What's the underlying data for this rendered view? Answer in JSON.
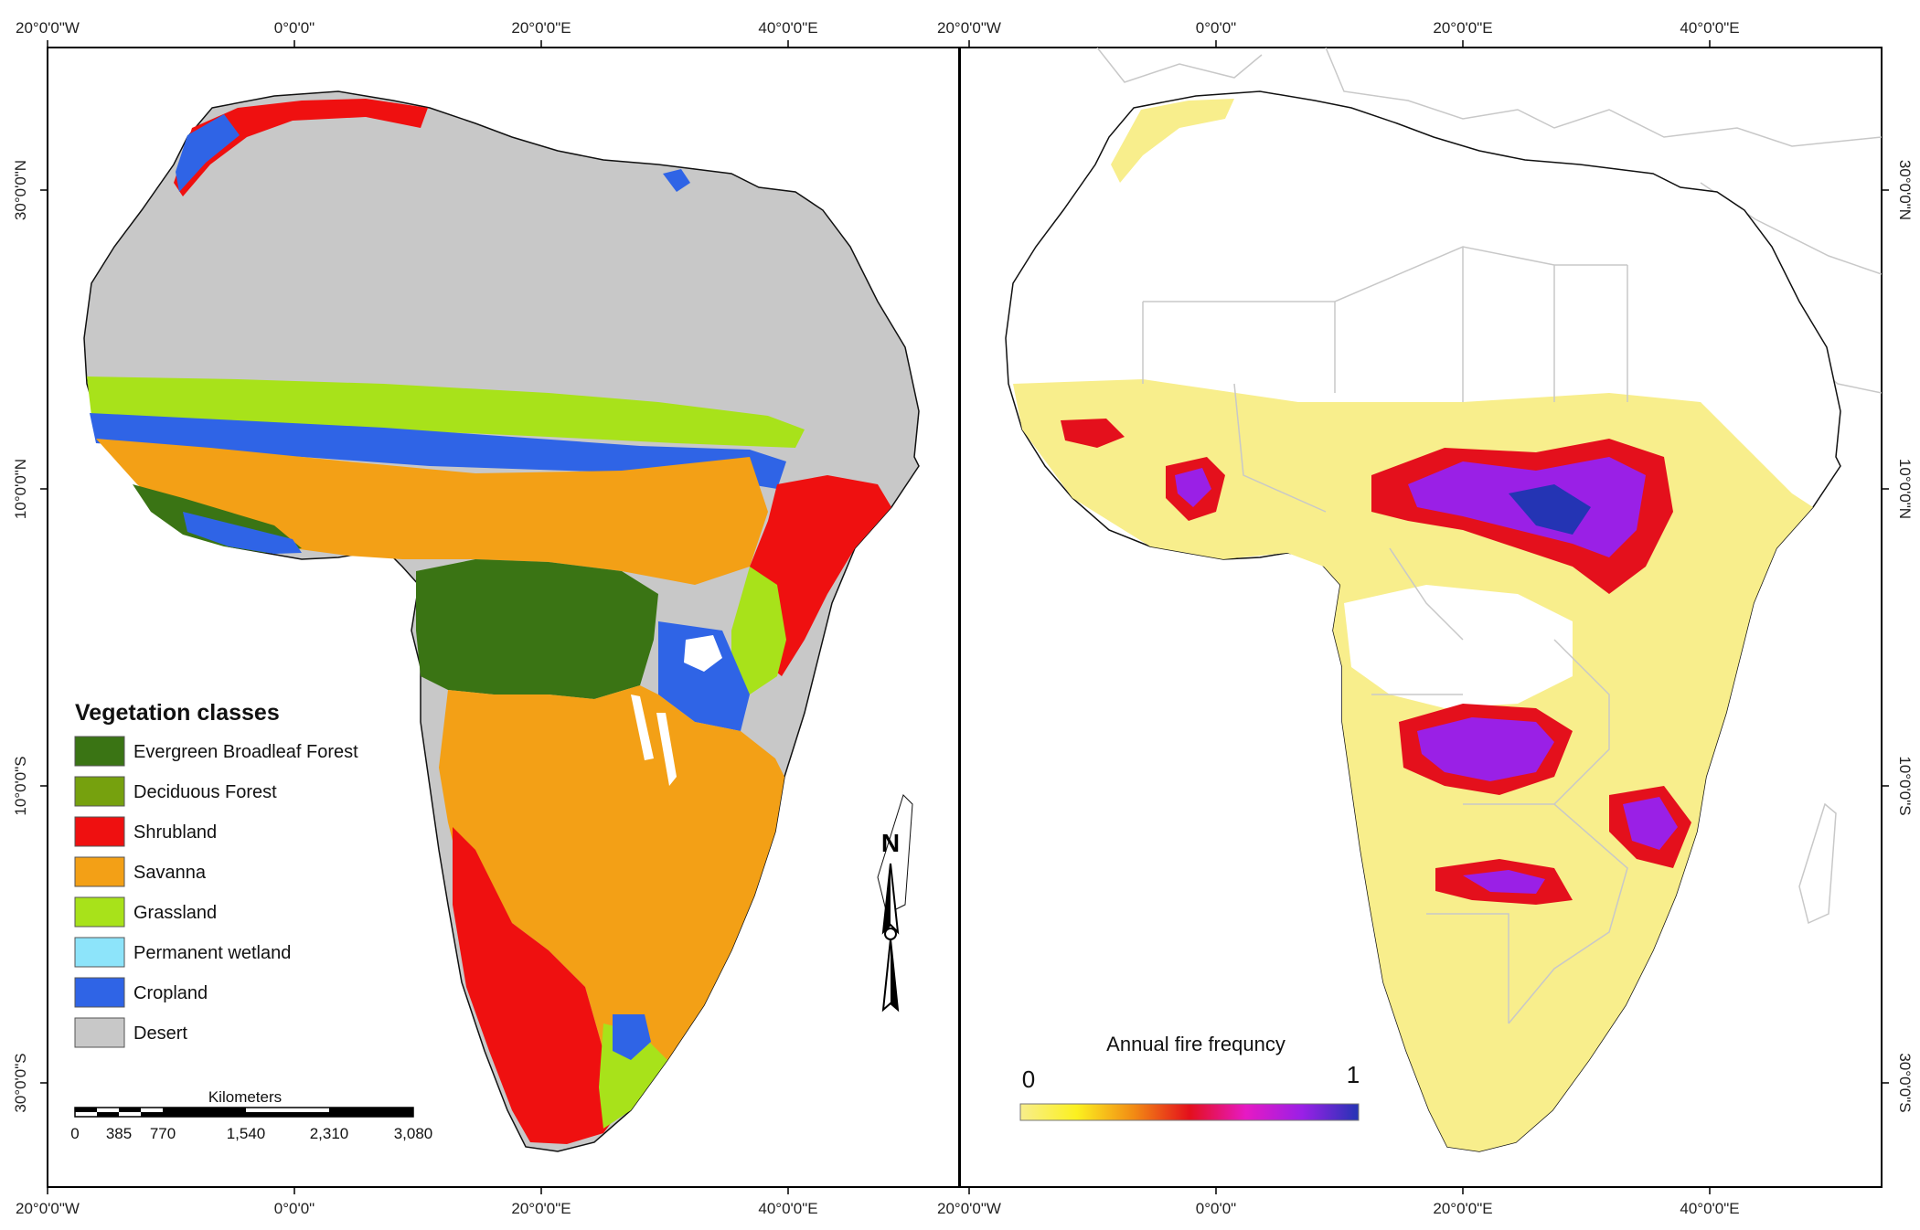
{
  "left_map": {
    "top_ticks": [
      "20°0'0\"W",
      "0°0'0\"",
      "20°0'0\"E",
      "40°0'0\"E"
    ],
    "bottom_ticks": [
      "20°0'0\"W",
      "0°0'0\"",
      "20°0'0\"E",
      "40°0'0\"E"
    ],
    "left_ticks": [
      "30°0'0\"N",
      "10°0'0\"N",
      "10°0'0\"S",
      "30°0'0\"S"
    ],
    "legend": {
      "title": "Vegetation classes",
      "items": [
        {
          "label": "Evergreen Broadleaf Forest",
          "color": "#3a7414"
        },
        {
          "label": "Deciduous Forest",
          "color": "#76a10e"
        },
        {
          "label": "Shrubland",
          "color": "#ef1010"
        },
        {
          "label": "Savanna",
          "color": "#f3a016"
        },
        {
          "label": "Grassland",
          "color": "#a8e21a"
        },
        {
          "label": "Permanent wetland",
          "color": "#8de4fa"
        },
        {
          "label": "Cropland",
          "color": "#2f64e6"
        },
        {
          "label": "Desert",
          "color": "#c8c8c8"
        }
      ]
    },
    "scale_bar": {
      "title": "Kilometers",
      "ticks": [
        "0",
        "385",
        "770",
        "1,540",
        "2,310",
        "3,080"
      ]
    },
    "north_label": "N"
  },
  "right_map": {
    "top_ticks": [
      "20°0'0\"W",
      "0°0'0\"",
      "20°0'0\"E",
      "40°0'0\"E"
    ],
    "bottom_ticks": [
      "20°0'0\"W",
      "0°0'0\"",
      "20°0'0\"E",
      "40°0'0\"E"
    ],
    "right_ticks": [
      "30°0'0\"N",
      "10°0'0\"N",
      "10°0'0\"S",
      "30°0'0\"S"
    ],
    "colorbar": {
      "title": "Annual fire frequncy",
      "min_label": "0",
      "max_label": "1",
      "colors": [
        "#f8ee8c",
        "#fbf020",
        "#f28c14",
        "#e4101c",
        "#e619c4",
        "#9a20e6",
        "#2434b4"
      ]
    }
  }
}
